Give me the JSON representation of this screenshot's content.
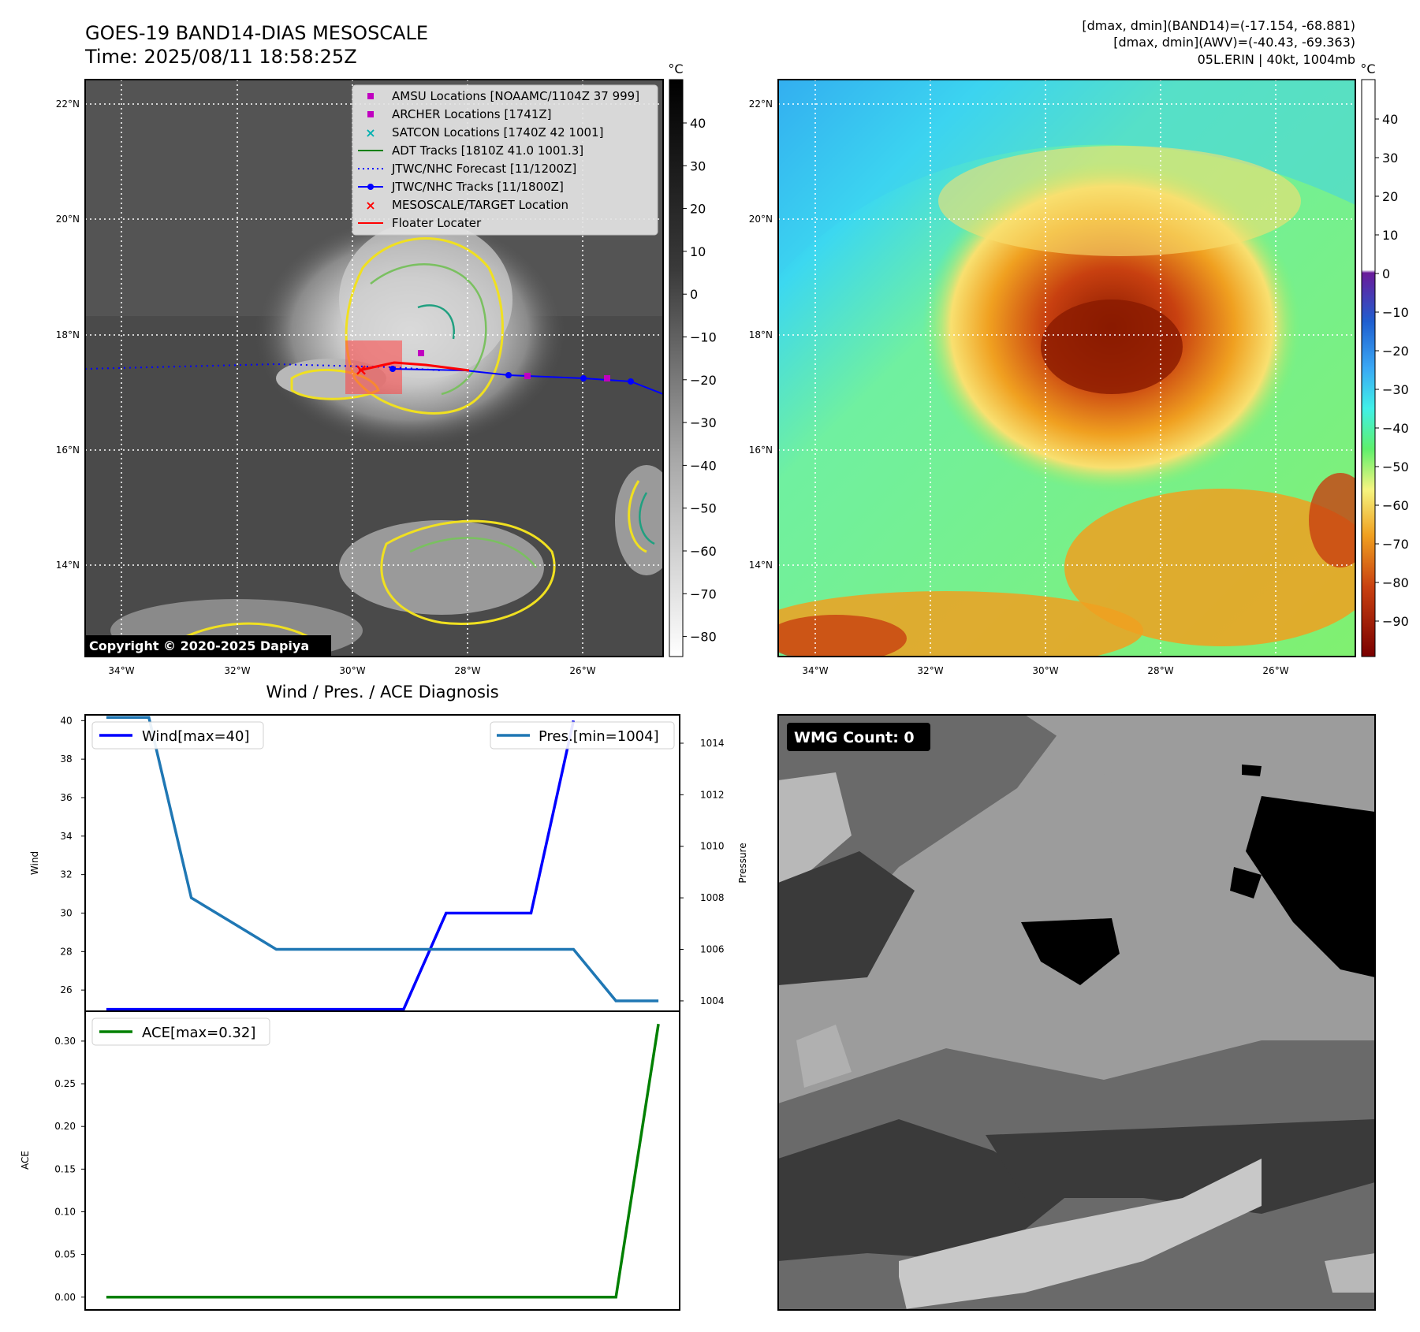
{
  "header": {
    "title_line1": "GOES-19 BAND14-DIAS MESOSCALE",
    "title_line2": "Time: 2025/08/11 18:58:25Z",
    "stats_line1": "[dmax, dmin](BAND14)=(-17.154, -68.881)",
    "stats_line2": "[dmax, dmin](AWV)=(-40.43, -69.363)",
    "stats_line3": "05L.ERIN | 40kt, 1004mb"
  },
  "map_axes": {
    "lat_ticks": [
      "22°N",
      "20°N",
      "18°N",
      "16°N",
      "14°N"
    ],
    "lon_ticks": [
      "34°W",
      "32°W",
      "30°W",
      "28°W",
      "26°W"
    ]
  },
  "ir_panel": {
    "copyright": "Copyright © 2020-2025 Dapiya",
    "colorbar_unit": "°C",
    "colorbar_ticks": [
      "40",
      "30",
      "20",
      "10",
      "0",
      "−10",
      "−20",
      "−30",
      "−40",
      "−50",
      "−60",
      "−70",
      "−80"
    ],
    "legend": [
      {
        "label": "AMSU Locations [NOAAMC/1104Z 37 999]",
        "marker": "square",
        "color": "#c000c0"
      },
      {
        "label": "ARCHER Locations [1741Z]",
        "marker": "square",
        "color": "#c000c0"
      },
      {
        "label": "SATCON Locations [1740Z 42 1001]",
        "marker": "x",
        "color": "#00b0b0"
      },
      {
        "label": "ADT Tracks [1810Z 41.0 1001.3]",
        "marker": "line",
        "color": "#008000"
      },
      {
        "label": "JTWC/NHC Forecast [11/1200Z]",
        "marker": "dotted",
        "color": "#0000ff"
      },
      {
        "label": "JTWC/NHC Tracks [11/1800Z]",
        "marker": "line-dot",
        "color": "#0000ff"
      },
      {
        "label": "MESOSCALE/TARGET Location",
        "marker": "x",
        "color": "#ff0000"
      },
      {
        "label": "Floater Locater",
        "marker": "line",
        "color": "#ff0000"
      }
    ]
  },
  "awv_panel": {
    "colorbar_unit": "°C",
    "colorbar_ticks": [
      "40",
      "30",
      "20",
      "10",
      "0",
      "−10",
      "−20",
      "−30",
      "−40",
      "−50",
      "−60",
      "−70",
      "−80",
      "−90"
    ]
  },
  "wmg_panel": {
    "count_label": "WMG Count: 0"
  },
  "chart_data": [
    {
      "type": "line",
      "title": "Wind / Pres. / ACE Diagnosis",
      "ylabel": "Wind",
      "ylabel_right": "Pressure",
      "x": [
        0,
        1,
        2,
        3,
        4,
        5,
        6,
        7,
        8,
        9,
        10,
        11,
        12,
        13
      ],
      "ylim": [
        24.9,
        40.3
      ],
      "ylim_right": [
        1003.6,
        1015.1
      ],
      "yticks": [
        "26",
        "28",
        "30",
        "32",
        "34",
        "36",
        "38",
        "40"
      ],
      "yticks_right": [
        "1004",
        "1006",
        "1008",
        "1010",
        "1012",
        "1014"
      ],
      "series": [
        {
          "name": "Wind[max=40]",
          "color": "#0000ff",
          "axis": "left",
          "values": [
            25,
            25,
            25,
            25,
            25,
            25,
            25,
            25,
            30,
            30,
            30,
            40,
            null,
            null
          ]
        },
        {
          "name": "Pres.[min=1004]",
          "color": "#1f77b4",
          "axis": "right",
          "values": [
            1015,
            1015,
            1008,
            1007,
            1006,
            1006,
            1006,
            1006,
            1006,
            1006,
            1006,
            1006,
            1004,
            1004
          ]
        }
      ],
      "legend": [
        "top-left",
        "top-right"
      ]
    },
    {
      "type": "line",
      "ylabel": "ACE",
      "x": [
        0,
        12,
        13
      ],
      "xlim": [
        -0.5,
        13.5
      ],
      "ylim": [
        -0.015,
        0.335
      ],
      "yticks": [
        "0.00",
        "0.05",
        "0.10",
        "0.15",
        "0.20",
        "0.25",
        "0.30"
      ],
      "series": [
        {
          "name": "ACE[max=0.32]",
          "color": "#008000",
          "values": [
            0.0,
            0.0,
            0.32
          ]
        }
      ],
      "legend": "top-left"
    }
  ]
}
